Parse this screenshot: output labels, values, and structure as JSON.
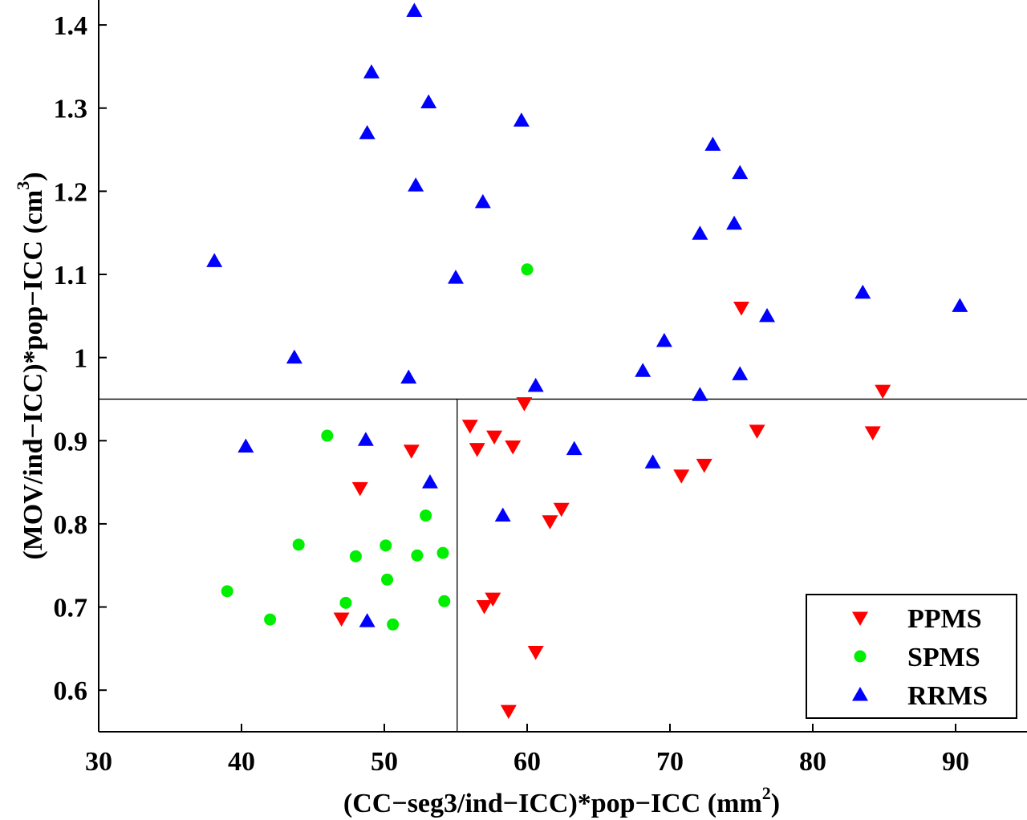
{
  "chart_data": {
    "type": "scatter",
    "xlabel": {
      "main": "(CC−seg3/ind−ICC)*pop−ICC (mm",
      "sup": "2",
      "end": ")"
    },
    "ylabel": {
      "main": "(MOV/ind−ICC)*pop−ICC (cm",
      "sup": "3",
      "end": ")"
    },
    "xlim": [
      30,
      95
    ],
    "ylim": [
      0.55,
      1.43
    ],
    "xticks": [
      30,
      40,
      50,
      60,
      70,
      80,
      90
    ],
    "yticks": [
      0.6,
      0.7,
      0.8,
      0.9,
      1,
      1.1,
      1.2,
      1.3,
      1.4
    ],
    "xtick_labels": [
      "30",
      "40",
      "50",
      "60",
      "70",
      "80",
      "90"
    ],
    "ytick_labels": [
      "0.6",
      "0.7",
      "0.8",
      "0.9",
      "1",
      "1.1",
      "1.2",
      "1.3",
      "1.4"
    ],
    "reference_lines": {
      "vertical_x": 55.1,
      "horizontal_y": 0.95
    },
    "legend_position": "bottom-right",
    "series": [
      {
        "name": "PPMS",
        "marker": "triangle-down",
        "color": "#ff0000",
        "points": [
          [
            75.0,
            1.06
          ],
          [
            84.9,
            0.96
          ],
          [
            59.8,
            0.945
          ],
          [
            56.0,
            0.918
          ],
          [
            57.7,
            0.905
          ],
          [
            59.0,
            0.893
          ],
          [
            56.5,
            0.89
          ],
          [
            51.9,
            0.888
          ],
          [
            84.2,
            0.91
          ],
          [
            76.1,
            0.912
          ],
          [
            72.4,
            0.871
          ],
          [
            70.8,
            0.858
          ],
          [
            48.3,
            0.843
          ],
          [
            62.4,
            0.818
          ],
          [
            61.6,
            0.803
          ],
          [
            57.6,
            0.71
          ],
          [
            57.0,
            0.701
          ],
          [
            47.0,
            0.686
          ],
          [
            60.6,
            0.646
          ],
          [
            58.7,
            0.575
          ]
        ]
      },
      {
        "name": "SPMS",
        "marker": "circle",
        "color": "#00ee00",
        "points": [
          [
            60.0,
            1.106
          ],
          [
            46.0,
            0.906
          ],
          [
            52.9,
            0.81
          ],
          [
            44.0,
            0.775
          ],
          [
            50.1,
            0.774
          ],
          [
            54.1,
            0.765
          ],
          [
            52.3,
            0.762
          ],
          [
            48.0,
            0.761
          ],
          [
            50.2,
            0.733
          ],
          [
            39.0,
            0.719
          ],
          [
            54.2,
            0.707
          ],
          [
            47.3,
            0.705
          ],
          [
            42.0,
            0.685
          ],
          [
            50.6,
            0.679
          ]
        ]
      },
      {
        "name": "RRMS",
        "marker": "triangle-up",
        "color": "#0000ff",
        "points": [
          [
            52.1,
            1.417
          ],
          [
            49.1,
            1.343
          ],
          [
            53.1,
            1.307
          ],
          [
            48.8,
            1.27
          ],
          [
            59.6,
            1.285
          ],
          [
            52.2,
            1.207
          ],
          [
            56.9,
            1.187
          ],
          [
            73.0,
            1.256
          ],
          [
            74.9,
            1.222
          ],
          [
            74.5,
            1.161
          ],
          [
            72.1,
            1.149
          ],
          [
            38.1,
            1.116
          ],
          [
            55.0,
            1.096
          ],
          [
            83.5,
            1.078
          ],
          [
            90.3,
            1.062
          ],
          [
            76.8,
            1.05
          ],
          [
            69.6,
            1.02
          ],
          [
            43.7,
            1.0
          ],
          [
            68.1,
            0.984
          ],
          [
            51.7,
            0.976
          ],
          [
            74.9,
            0.98
          ],
          [
            60.6,
            0.966
          ],
          [
            72.1,
            0.955
          ],
          [
            40.3,
            0.893
          ],
          [
            48.7,
            0.901
          ],
          [
            63.3,
            0.89
          ],
          [
            68.8,
            0.874
          ],
          [
            53.2,
            0.85
          ],
          [
            58.3,
            0.81
          ],
          [
            48.8,
            0.683
          ]
        ]
      }
    ]
  }
}
